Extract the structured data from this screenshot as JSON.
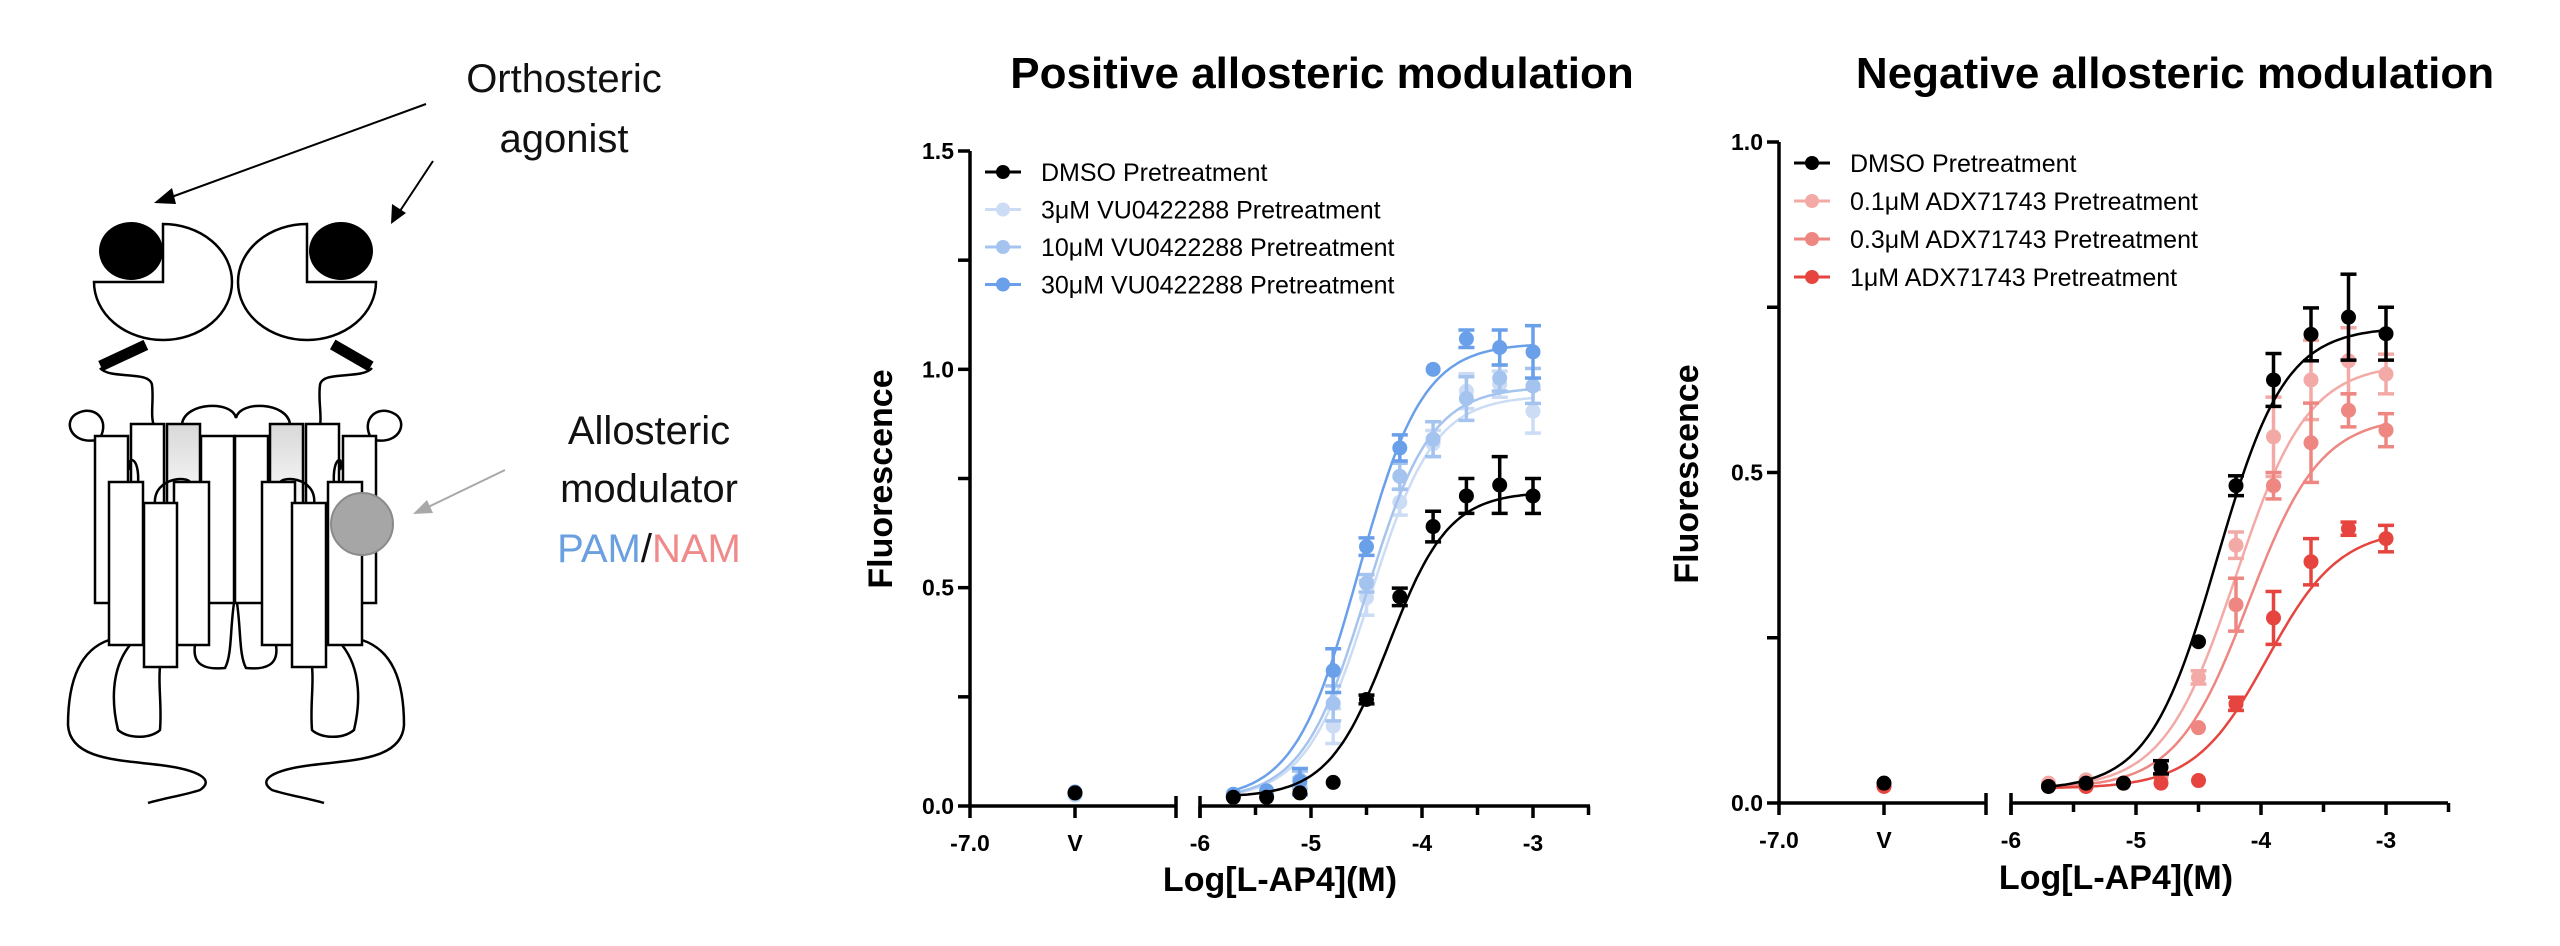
{
  "diagram": {
    "orthosteric_label": [
      "Orthosteric",
      "agonist"
    ],
    "allosteric_label": [
      "Allosteric",
      "modulator"
    ],
    "pam_label": "PAM",
    "slash": "/",
    "nam_label": "NAM",
    "colors": {
      "pam": "#6a9fe0",
      "nam": "#f08a8a",
      "modulator_site": "#a6a6a6"
    }
  },
  "chart_data": [
    {
      "type": "line",
      "title": "Positive allosteric modulation",
      "xlabel": "Log[L-AP4](M)",
      "ylabel": "Fluorescence",
      "ylim": [
        0,
        1.5
      ],
      "yticks": [
        "0.0",
        "0.5",
        "1.0",
        "1.5"
      ],
      "ytick_values": [
        0,
        0.5,
        1.0,
        1.5
      ],
      "xticks_left": [
        "-7.0",
        "V"
      ],
      "xticks": [
        "-6",
        "-5",
        "-4",
        "-3"
      ],
      "xtick_values": [
        -6,
        -5,
        -4,
        -3
      ],
      "xlim": [
        -6,
        -2.5
      ],
      "x": [
        -5.7,
        -5.4,
        -5.1,
        -4.8,
        -4.5,
        -4.2,
        -3.9,
        -3.6,
        -3.3,
        -3.0
      ],
      "legend_position": "top-left",
      "series": [
        {
          "name": "DMSO Pretreatment",
          "color": "#000000",
          "vehicle": 0.03,
          "values": [
            0.02,
            0.02,
            0.03,
            0.054,
            0.244,
            0.479,
            0.64,
            0.71,
            0.735,
            0.71
          ],
          "errors": [
            0,
            0,
            0,
            0,
            0.01,
            0.02,
            0.035,
            0.04,
            0.065,
            0.04
          ],
          "fit": {
            "bottom": 0.02,
            "top": 0.72,
            "logEC50": -4.3,
            "hill": 1.6
          }
        },
        {
          "name": "3μM VU0422288 Pretreatment",
          "color": "#cbdcf4",
          "vehicle": 0.025,
          "values": [
            0.02,
            0.03,
            0.045,
            0.183,
            0.477,
            0.696,
            0.83,
            0.95,
            0.966,
            0.904
          ],
          "errors": [
            0,
            0,
            0.02,
            0.04,
            0.04,
            0.03,
            0.03,
            0.04,
            0.03,
            0.05
          ],
          "fit": {
            "bottom": 0.015,
            "top": 0.94,
            "logEC50": -4.47,
            "hill": 1.5
          }
        },
        {
          "name": "10μM VU0422288 Pretreatment",
          "color": "#a4c4ef",
          "vehicle": 0.028,
          "values": [
            0.025,
            0.03,
            0.06,
            0.235,
            0.51,
            0.755,
            0.84,
            0.933,
            0.98,
            0.962
          ],
          "errors": [
            0,
            0,
            0.02,
            0.04,
            0.02,
            0.03,
            0.04,
            0.05,
            0.03,
            0.04
          ],
          "fit": {
            "bottom": 0.015,
            "top": 0.96,
            "logEC50": -4.5,
            "hill": 1.5
          }
        },
        {
          "name": "30μM VU0422288 Pretreatment",
          "color": "#6a9fea",
          "vehicle": 0.032,
          "values": [
            0.027,
            0.035,
            0.056,
            0.31,
            0.594,
            0.82,
            1.0,
            1.07,
            1.05,
            1.04
          ],
          "errors": [
            0,
            0,
            0.03,
            0.05,
            0.02,
            0.03,
            0,
            0.02,
            0.04,
            0.06
          ],
          "fit": {
            "bottom": 0.015,
            "top": 1.06,
            "logEC50": -4.57,
            "hill": 1.5
          }
        }
      ]
    },
    {
      "type": "line",
      "title": "Negative allosteric modulation",
      "xlabel": "Log[L-AP4](M)",
      "ylabel": "Fluorescence",
      "ylim": [
        0,
        1.0
      ],
      "yticks": [
        "0.0",
        "0.5",
        "1.0"
      ],
      "ytick_values": [
        0,
        0.5,
        1.0
      ],
      "xticks_left": [
        "-7.0",
        "V"
      ],
      "xticks": [
        "-6",
        "-5",
        "-4",
        "-3"
      ],
      "xtick_values": [
        -6,
        -5,
        -4,
        -3
      ],
      "xlim": [
        -6,
        -2.5
      ],
      "x": [
        -5.7,
        -5.4,
        -5.1,
        -4.8,
        -4.5,
        -4.2,
        -3.9,
        -3.6,
        -3.3,
        -3.0
      ],
      "legend_position": "top-left",
      "series": [
        {
          "name": "DMSO Pretreatment",
          "color": "#000000",
          "vehicle": 0.03,
          "values": [
            0.025,
            0.03,
            0.03,
            0.054,
            0.244,
            0.48,
            0.64,
            0.709,
            0.735,
            0.71
          ],
          "errors": [
            0,
            0,
            0,
            0.01,
            0,
            0.015,
            0.04,
            0.04,
            0.065,
            0.04
          ],
          "fit": {
            "bottom": 0.02,
            "top": 0.72,
            "logEC50": -4.35,
            "hill": 1.6
          }
        },
        {
          "name": "0.1μM ADX71743 Pretreatment",
          "color": "#f3aaa6",
          "vehicle": 0.03,
          "values": [
            0.03,
            0.035,
            0.03,
            0.044,
            0.19,
            0.39,
            0.554,
            0.64,
            0.669,
            0.649
          ],
          "errors": [
            0,
            0,
            0,
            0,
            0.01,
            0.02,
            0.06,
            0.06,
            0.05,
            0.03
          ],
          "fit": {
            "bottom": 0.022,
            "top": 0.665,
            "logEC50": -4.2,
            "hill": 1.5
          }
        },
        {
          "name": "0.3μM ADX71743 Pretreatment",
          "color": "#ee8681",
          "vehicle": 0.027,
          "values": [
            0.025,
            0.025,
            0.03,
            0.04,
            0.114,
            0.3,
            0.48,
            0.545,
            0.594,
            0.564
          ],
          "errors": [
            0,
            0,
            0,
            0,
            0,
            0.04,
            0.02,
            0.06,
            0.025,
            0.025
          ],
          "fit": {
            "bottom": 0.022,
            "top": 0.585,
            "logEC50": -4.1,
            "hill": 1.5
          }
        },
        {
          "name": "1μM ADX71743 Pretreatment",
          "color": "#e5453e",
          "vehicle": 0.025,
          "values": [
            0.025,
            0.025,
            0.03,
            0.03,
            0.034,
            0.15,
            0.28,
            0.365,
            0.415,
            0.4
          ],
          "errors": [
            0,
            0,
            0,
            0,
            0,
            0.01,
            0.04,
            0.035,
            0.01,
            0.02
          ],
          "fit": {
            "bottom": 0.022,
            "top": 0.415,
            "logEC50": -3.95,
            "hill": 1.5
          }
        }
      ]
    }
  ]
}
